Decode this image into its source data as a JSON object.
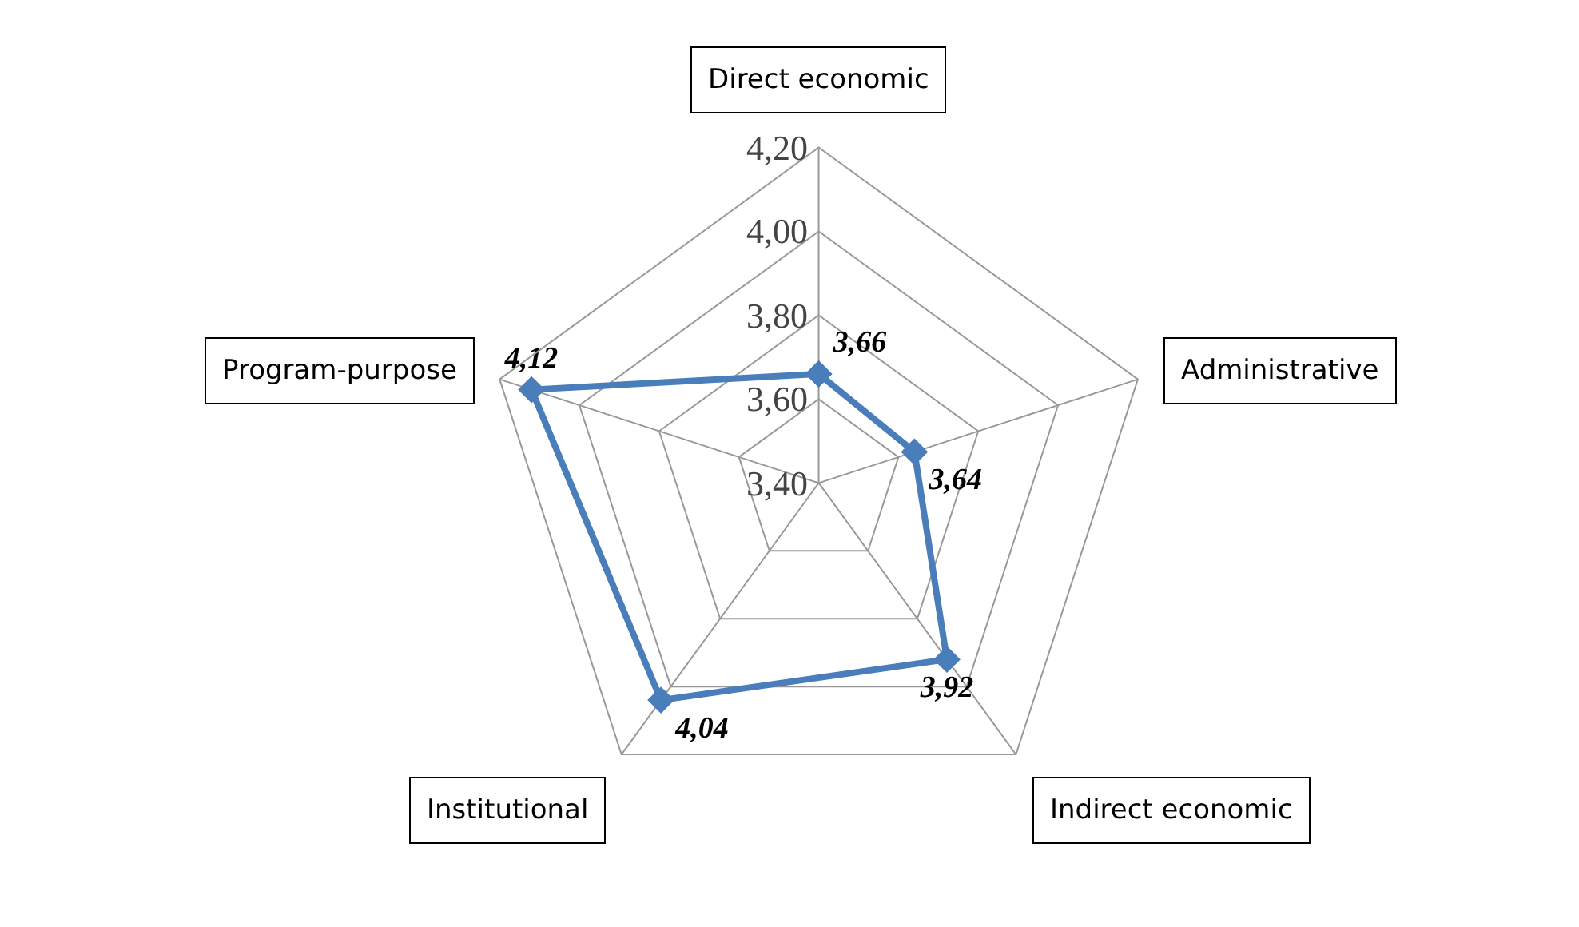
{
  "chart_data": {
    "type": "radar",
    "categories": [
      "Direct economic",
      "Administrative",
      "Indirect economic",
      "Institutional",
      "Program-purpose"
    ],
    "series": [
      {
        "color": "#4a7ebb",
        "values": [
          3.66,
          3.64,
          3.92,
          4.04,
          4.12
        ],
        "value_labels": [
          "3,66",
          "3,64",
          "3,92",
          "4,04",
          "4,12"
        ]
      }
    ],
    "ylim": [
      3.4,
      4.2
    ],
    "yticks": [
      {
        "value": 3.4,
        "label": "3,40"
      },
      {
        "value": 3.6,
        "label": "3,60"
      },
      {
        "value": 3.8,
        "label": "3,80"
      },
      {
        "value": 4.0,
        "label": "4,00"
      },
      {
        "value": 4.2,
        "label": "4,20"
      }
    ],
    "grid": true,
    "marker": "diamond",
    "line_style": "solid"
  }
}
